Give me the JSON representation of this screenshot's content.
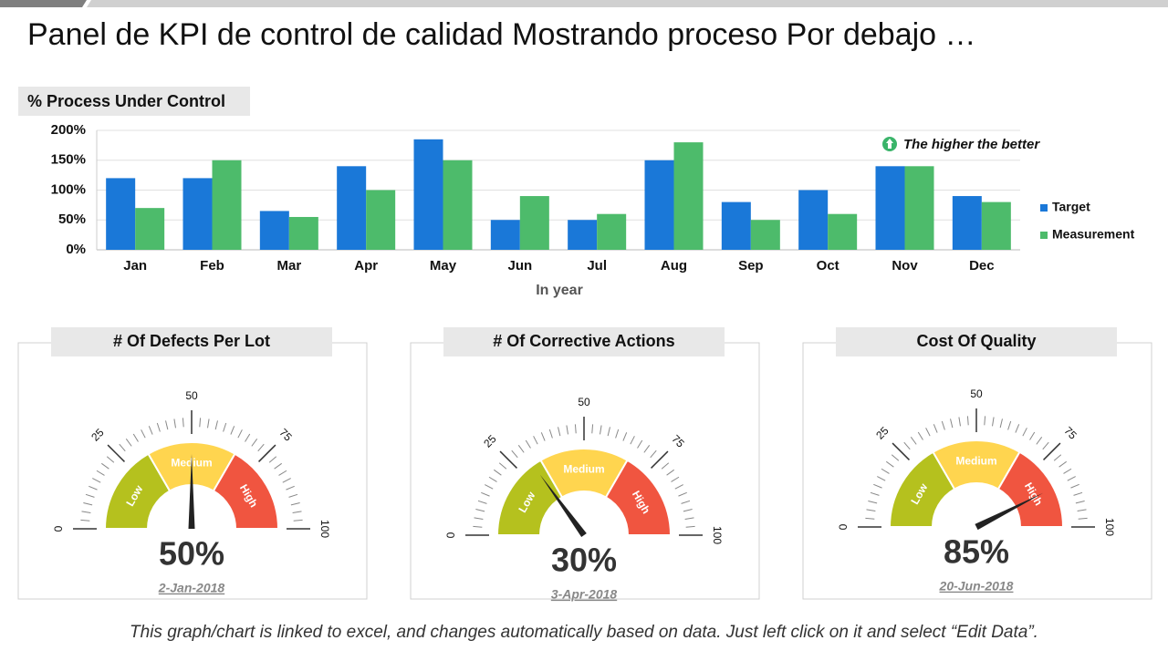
{
  "title": "Panel de KPI de control de calidad Mostrando proceso Por debajo …",
  "footer": "This graph/chart is linked to excel, and changes automatically based on data. Just left click on it and select “Edit Data”.",
  "chart_data": [
    {
      "type": "bar",
      "title": "% Process Under Control",
      "x_label": "In year",
      "annotation": "The higher the better",
      "categories": [
        "Jan",
        "Feb",
        "Mar",
        "Apr",
        "May",
        "Jun",
        "Jul",
        "Aug",
        "Sep",
        "Oct",
        "Nov",
        "Dec"
      ],
      "series": [
        {
          "name": "Target",
          "color": "#1a78d8",
          "values": [
            120,
            120,
            65,
            140,
            185,
            50,
            50,
            150,
            80,
            100,
            140,
            90
          ]
        },
        {
          "name": "Measurement",
          "color": "#4dbb6b",
          "values": [
            70,
            150,
            55,
            100,
            150,
            90,
            60,
            180,
            50,
            60,
            140,
            80
          ]
        }
      ],
      "ylim": [
        0,
        200
      ],
      "yticks": [
        {
          "value": 0,
          "label": "0%"
        },
        {
          "value": 50,
          "label": "50%"
        },
        {
          "value": 100,
          "label": "100%"
        },
        {
          "value": 150,
          "label": "150%"
        },
        {
          "value": 200,
          "label": "200%"
        }
      ],
      "grid": true,
      "legend": "right"
    },
    {
      "type": "gauge",
      "title": "# Of Defects Per Lot",
      "value": 50,
      "value_label": "50%",
      "date": "2-Jan-2018",
      "lim": [
        0,
        100
      ],
      "ticks": [
        0,
        25,
        50,
        75,
        100
      ],
      "zones": [
        {
          "name": "Low",
          "color": "#b5c11e"
        },
        {
          "name": "Medium",
          "color": "#ffd54f"
        },
        {
          "name": "High",
          "color": "#f05540"
        }
      ]
    },
    {
      "type": "gauge",
      "title": "# Of Corrective Actions",
      "value": 30,
      "value_label": "30%",
      "date": "3-Apr-2018",
      "lim": [
        0,
        100
      ],
      "ticks": [
        0,
        25,
        50,
        75,
        100
      ],
      "zones": [
        {
          "name": "Low",
          "color": "#b5c11e"
        },
        {
          "name": "Medium",
          "color": "#ffd54f"
        },
        {
          "name": "High",
          "color": "#f05540"
        }
      ]
    },
    {
      "type": "gauge",
      "title": "Cost Of Quality",
      "value": 85,
      "value_label": "85%",
      "date": "20-Jun-2018",
      "lim": [
        0,
        100
      ],
      "ticks": [
        0,
        25,
        50,
        75,
        100
      ],
      "zones": [
        {
          "name": "Low",
          "color": "#b5c11e"
        },
        {
          "name": "Medium",
          "color": "#ffd54f"
        },
        {
          "name": "High",
          "color": "#f05540"
        }
      ]
    }
  ]
}
